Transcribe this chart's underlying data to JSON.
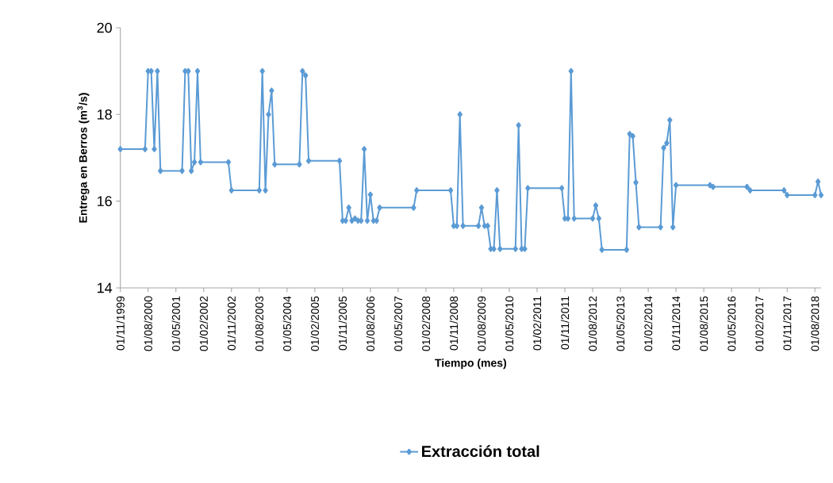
{
  "chart_data": {
    "type": "line",
    "xlabel": "Tiempo (mes)",
    "ylabel": "Entrega en Berros (m$^{3}$/s)",
    "xlim": [
      "1999-11",
      "2018-10"
    ],
    "ylim": [
      14,
      20
    ],
    "yticks": [
      14,
      16,
      18,
      20
    ],
    "xticks": [
      {
        "value": "1999-11",
        "label": "01/11/1999"
      },
      {
        "value": "2000-08",
        "label": "01/08/2000"
      },
      {
        "value": "2001-05",
        "label": "01/05/2001"
      },
      {
        "value": "2002-02",
        "label": "01/02/2002"
      },
      {
        "value": "2002-11",
        "label": "01/11/2002"
      },
      {
        "value": "2003-08",
        "label": "01/08/2003"
      },
      {
        "value": "2004-05",
        "label": "01/05/2004"
      },
      {
        "value": "2005-02",
        "label": "01/02/2005"
      },
      {
        "value": "2005-11",
        "label": "01/11/2005"
      },
      {
        "value": "2006-08",
        "label": "01/08/2006"
      },
      {
        "value": "2007-05",
        "label": "01/05/2007"
      },
      {
        "value": "2008-02",
        "label": "01/02/2008"
      },
      {
        "value": "2008-11",
        "label": "01/11/2008"
      },
      {
        "value": "2009-08",
        "label": "01/08/2009"
      },
      {
        "value": "2010-05",
        "label": "01/05/2010"
      },
      {
        "value": "2011-02",
        "label": "01/02/2011"
      },
      {
        "value": "2011-11",
        "label": "01/11/2011"
      },
      {
        "value": "2012-08",
        "label": "01/08/2012"
      },
      {
        "value": "2013-05",
        "label": "01/05/2013"
      },
      {
        "value": "2014-02",
        "label": "01/02/2014"
      },
      {
        "value": "2014-11",
        "label": "01/11/2014"
      },
      {
        "value": "2015-08",
        "label": "01/08/2015"
      },
      {
        "value": "2016-05",
        "label": "01/05/2016"
      },
      {
        "value": "2017-02",
        "label": "01/02/2017"
      },
      {
        "value": "2017-11",
        "label": "01/11/2017"
      },
      {
        "value": "2018-08",
        "label": "01/08/2018"
      }
    ],
    "legend": "bottom",
    "marker": "diamond",
    "series": [
      {
        "name": "Extracción total",
        "color": "#5b9bd5",
        "x": [
          "1999-11",
          "2000-07",
          "2000-08",
          "2000-09",
          "2000-10",
          "2000-11",
          "2000-12",
          "2001-07",
          "2001-08",
          "2001-09",
          "2001-10",
          "2001-11",
          "2001-12",
          "2002-01",
          "2002-10",
          "2002-11",
          "2003-08",
          "2003-09",
          "2003-10",
          "2003-11",
          "2003-12",
          "2004-01",
          "2004-09",
          "2004-10",
          "2004-11",
          "2004-12",
          "2005-10",
          "2005-11",
          "2005-12",
          "2006-01",
          "2006-02",
          "2006-03",
          "2006-04",
          "2006-05",
          "2006-06",
          "2006-07",
          "2006-08",
          "2006-09",
          "2006-10",
          "2006-11",
          "2007-10",
          "2007-11",
          "2008-10",
          "2008-11",
          "2008-12",
          "2009-01",
          "2009-02",
          "2009-07",
          "2009-08",
          "2009-09",
          "2009-10",
          "2009-11",
          "2009-12",
          "2010-01",
          "2010-02",
          "2010-07",
          "2010-08",
          "2010-09",
          "2010-10",
          "2010-11",
          "2011-10",
          "2011-11",
          "2011-12",
          "2012-01",
          "2012-02",
          "2012-08",
          "2012-09",
          "2012-10",
          "2012-11",
          "2013-07",
          "2013-08",
          "2013-09",
          "2013-10",
          "2013-11",
          "2014-06",
          "2014-07",
          "2014-08",
          "2014-09",
          "2014-10",
          "2014-11",
          "2015-10",
          "2015-11",
          "2016-10",
          "2016-11",
          "2017-10",
          "2017-11",
          "2018-08",
          "2018-09",
          "2018-10"
        ],
        "values": [
          17.2,
          17.2,
          19.0,
          19.0,
          17.2,
          19.0,
          16.7,
          16.7,
          19.0,
          19.0,
          16.7,
          16.9,
          19.0,
          16.9,
          16.9,
          16.25,
          16.25,
          19.0,
          16.25,
          18.0,
          18.55,
          16.85,
          16.85,
          19.0,
          18.9,
          16.93,
          16.93,
          15.55,
          15.55,
          15.85,
          15.55,
          15.6,
          15.55,
          15.55,
          17.2,
          15.55,
          16.15,
          15.55,
          15.55,
          15.85,
          15.85,
          16.25,
          16.25,
          15.43,
          15.43,
          18.0,
          15.43,
          15.43,
          15.85,
          15.43,
          15.43,
          14.9,
          14.9,
          16.25,
          14.9,
          14.9,
          17.75,
          14.9,
          14.9,
          16.3,
          16.3,
          15.6,
          15.6,
          19.0,
          15.6,
          15.6,
          15.9,
          15.6,
          14.88,
          14.88,
          17.55,
          17.5,
          16.43,
          15.4,
          15.4,
          17.23,
          17.34,
          17.87,
          15.4,
          16.37,
          16.37,
          16.33,
          16.33,
          16.25,
          16.25,
          16.14,
          16.14,
          16.45,
          16.14
        ]
      }
    ]
  }
}
